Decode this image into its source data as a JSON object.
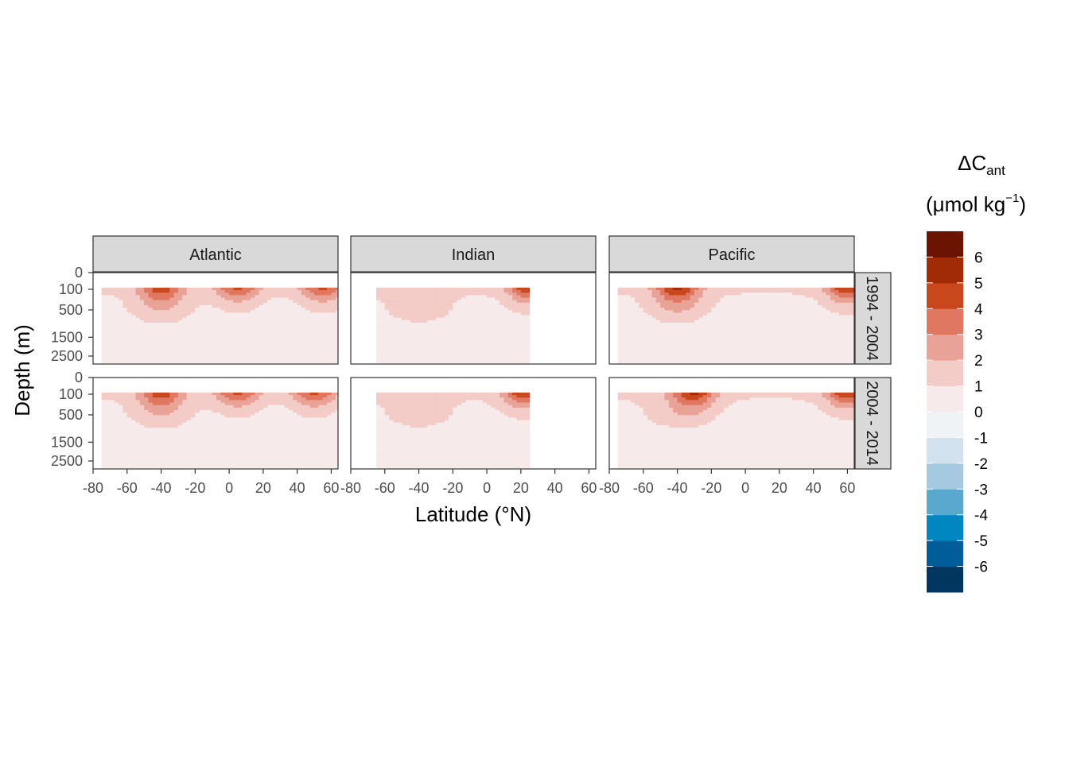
{
  "chart_data": {
    "type": "heatmap",
    "subtype": "filled-contour-faceted",
    "xlabel": "Latitude (°N)",
    "ylabel": "Depth (m)",
    "facet_cols": [
      "Atlantic",
      "Indian",
      "Pacific"
    ],
    "facet_rows": [
      "1994 - 2004",
      "2004 - 2014"
    ],
    "x_ticks": [
      "-80",
      "-60",
      "-40",
      "-20",
      "0",
      "20",
      "40",
      "60"
    ],
    "y_ticks": [
      "0",
      "100",
      "500",
      "1500",
      "2500"
    ],
    "xlim": [
      -80,
      64
    ],
    "ylim": [
      0,
      3000
    ],
    "y_scale": "square-root, reversed",
    "grid": false,
    "legend": {
      "placement": "right",
      "title_main": "ΔC",
      "title_sub": "ant",
      "unit_open": "(μmol kg",
      "unit_sup": "−1",
      "unit_close": ")",
      "labels": [
        "6",
        "5",
        "4",
        "3",
        "2",
        "1",
        "0",
        "-1",
        "-2",
        "-3",
        "-4",
        "-5",
        "-6"
      ],
      "breaks": [
        -7,
        -6,
        -5,
        -4,
        -3,
        -2,
        -1,
        0,
        1,
        2,
        3,
        4,
        5,
        6,
        7
      ],
      "colors_low_to_high": [
        "#003660",
        "#005d99",
        "#0086c0",
        "#5ba8cf",
        "#a4c9e0",
        "#d2e1ee",
        "#eff3f6",
        "#f7eaea",
        "#f3cbc7",
        "#e9a296",
        "#df7761",
        "#c8471d",
        "#a12b07",
        "#6b1404"
      ]
    },
    "panels": [
      {
        "ocean": "Atlantic",
        "period": "1994 - 2004",
        "lat_range": [
          -75,
          64
        ],
        "surface_max": 6,
        "surface_peak_lats": [
          -40,
          5,
          55
        ],
        "interior": 1,
        "deep_min": 0
      },
      {
        "ocean": "Indian",
        "period": "1994 - 2004",
        "lat_range": [
          -65,
          25
        ],
        "surface_max": 7,
        "surface_peak_lats": [
          25
        ],
        "interior": 1,
        "deep_min": 0
      },
      {
        "ocean": "Pacific",
        "period": "1994 - 2004",
        "lat_range": [
          -75,
          64
        ],
        "surface_max": 7,
        "surface_peak_lats": [
          -40,
          60
        ],
        "interior": 1,
        "deep_min": 0
      },
      {
        "ocean": "Atlantic",
        "period": "2004 - 2014",
        "lat_range": [
          -75,
          64
        ],
        "surface_max": 6,
        "surface_peak_lats": [
          -40,
          5,
          50
        ],
        "interior": 1,
        "deep_min": 0
      },
      {
        "ocean": "Indian",
        "period": "2004 - 2014",
        "lat_range": [
          -65,
          25
        ],
        "surface_max": 7,
        "surface_peak_lats": [
          22
        ],
        "interior": 1,
        "deep_min": 0
      },
      {
        "ocean": "Pacific",
        "period": "2004 - 2014",
        "lat_range": [
          -75,
          64
        ],
        "surface_max": 7,
        "surface_peak_lats": [
          -30,
          60
        ],
        "interior": 1,
        "deep_min": 0
      }
    ]
  }
}
